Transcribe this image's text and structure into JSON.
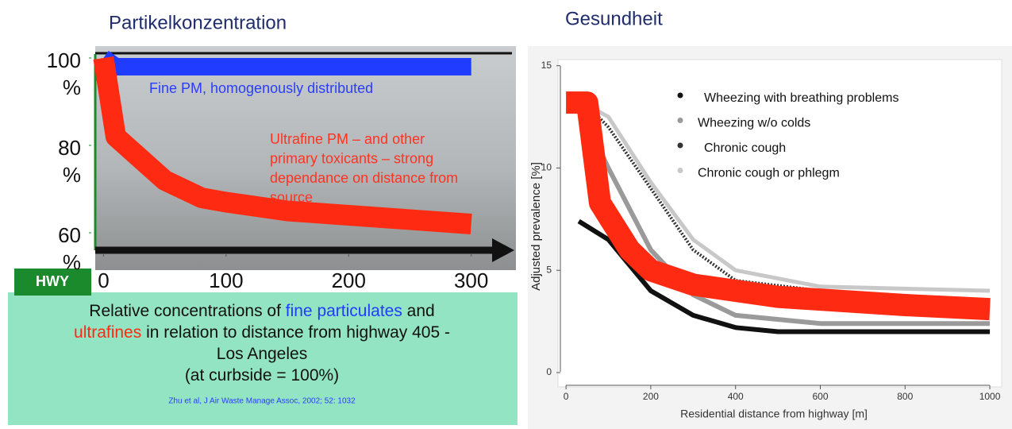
{
  "chart_data": [
    {
      "type": "line",
      "title": "Partikelkonzentration",
      "xlim": [
        -10,
        330
      ],
      "ylim": [
        56,
        102
      ],
      "xticks": [
        0,
        100,
        200,
        300
      ],
      "yticks": [
        {
          "value": 100,
          "label": "100\n%"
        },
        {
          "value": 80,
          "label": "80\n%"
        },
        {
          "value": 60,
          "label": "60\n%"
        }
      ],
      "grid": false,
      "marker_label": "HWY",
      "series": [
        {
          "color": "#1f3cff",
          "x": [
            0,
            10,
            300
          ],
          "values": [
            100,
            98,
            98
          ]
        },
        {
          "color": "#ff2a12",
          "x": [
            0,
            10,
            50,
            80,
            100,
            150,
            200,
            300
          ],
          "values": [
            100,
            82,
            72,
            68,
            67,
            65,
            64,
            62
          ]
        }
      ],
      "annotations": [
        "Fine PM, homogenously distributed",
        [
          "Ultrafine PM – and other",
          "primary toxicants – strong",
          "dependance on distance from",
          "source"
        ]
      ],
      "caption": [
        [
          "Relative concentrations of ",
          "fine particulates",
          " and"
        ],
        [
          "ultrafines",
          " in relation to distance from highway 405  -"
        ],
        [
          "Los Angeles"
        ],
        [
          "(at curbside = 100%)"
        ]
      ],
      "citation": "Zhu et al, J Air Waste Manage Assoc, 2002; 52: 1032"
    },
    {
      "type": "line",
      "title": "Gesundheit",
      "x_label": "Residential distance from highway [m]",
      "y_label": "Adjusted prevalence [%]",
      "xlim": [
        -19,
        1028
      ],
      "ylim": [
        -0.7,
        15.3
      ],
      "xticks": [
        0,
        200,
        400,
        600,
        800,
        1000
      ],
      "yticks": [
        0,
        5,
        10,
        15
      ],
      "grid": false,
      "legend": "top-right",
      "series": [
        {
          "name": "Wheezing with breathing problems",
          "color": "#111111",
          "x": [
            30,
            100,
            200,
            300,
            400,
            500,
            1000
          ],
          "values": [
            7.4,
            6.5,
            4,
            2.8,
            2.2,
            2.0,
            2.0
          ]
        },
        {
          "name": "Wheezing w/o colds",
          "color": "#9a9a9a",
          "x": [
            30,
            100,
            200,
            300,
            400,
            600,
            1000
          ],
          "values": [
            13,
            10,
            6,
            3.8,
            2.8,
            2.4,
            2.4
          ]
        },
        {
          "name": "Chronic cough",
          "color": "#333333",
          "x": [
            30,
            100,
            200,
            300,
            400,
            600,
            1000
          ],
          "values": [
            13.5,
            12,
            9,
            6,
            4.5,
            4,
            3.4
          ]
        },
        {
          "name": "Chronic cough or phlegm",
          "color": "#c8c8c8",
          "x": [
            30,
            100,
            200,
            300,
            400,
            600,
            1000
          ],
          "values": [
            13.3,
            12.5,
            9.3,
            6.5,
            5,
            4.2,
            4.0
          ]
        },
        {
          "color": "#ff2a12",
          "x": [
            0,
            50,
            80,
            150,
            200,
            300,
            500,
            800,
            1000
          ],
          "values": [
            13.2,
            13.2,
            8.3,
            6,
            5,
            4.3,
            3.7,
            3.3,
            3.1
          ]
        }
      ]
    }
  ]
}
